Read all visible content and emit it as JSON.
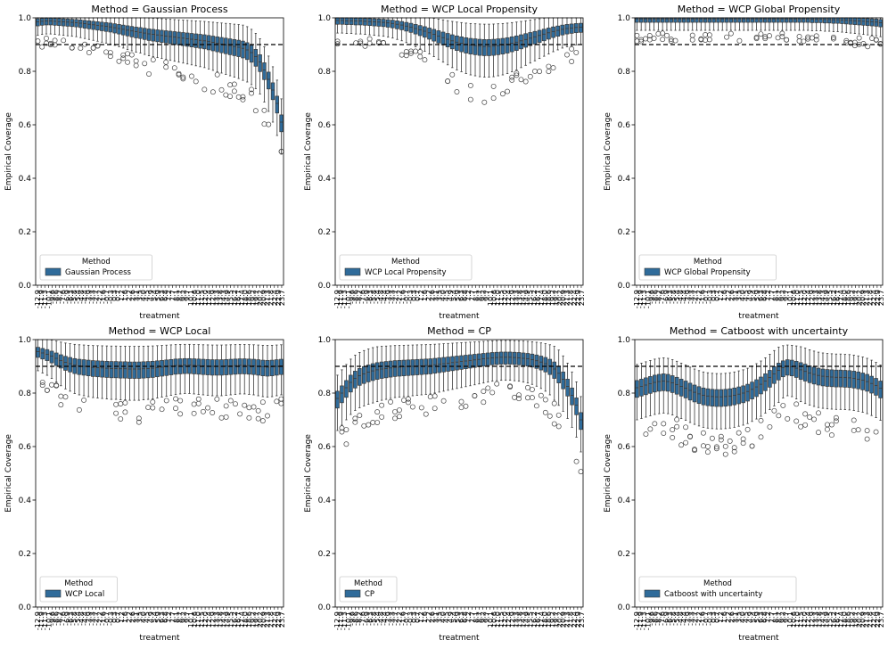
{
  "figure": {
    "ylabel": "Empirical Coverage",
    "xlabel": "treatment",
    "legend_title": "Method",
    "box_color": "#2f6b9a",
    "reference_line": 0.9
  },
  "chart_data": [
    {
      "type": "box",
      "title": "Method = Gaussian Process",
      "legend_label": "Gaussian Process",
      "ylim": [
        0,
        1
      ],
      "yticks": [
        "0.0",
        "0.2",
        "0.4",
        "0.6",
        "0.8",
        "1.0"
      ],
      "medians": [
        0.985,
        0.987,
        0.988,
        0.988,
        0.987,
        0.986,
        0.985,
        0.984,
        0.983,
        0.982,
        0.98,
        0.978,
        0.976,
        0.974,
        0.972,
        0.97,
        0.968,
        0.966,
        0.963,
        0.96,
        0.957,
        0.954,
        0.951,
        0.948,
        0.946,
        0.943,
        0.94,
        0.938,
        0.936,
        0.934,
        0.932,
        0.93,
        0.928,
        0.926,
        0.924,
        0.922,
        0.92,
        0.918,
        0.916,
        0.914,
        0.911,
        0.908,
        0.905,
        0.902,
        0.899,
        0.896,
        0.893,
        0.89,
        0.886,
        0.88,
        0.87,
        0.855,
        0.835,
        0.805,
        0.77,
        0.73,
        0.68,
        0.61
      ]
    },
    {
      "type": "box",
      "title": "Method = WCP Local Propensity",
      "legend_label": "WCP Local Propensity",
      "ylim": [
        0,
        1
      ],
      "yticks": [
        "0.0",
        "0.2",
        "0.4",
        "0.6",
        "0.8",
        "1.0"
      ],
      "medians": [
        0.99,
        0.99,
        0.989,
        0.989,
        0.988,
        0.988,
        0.987,
        0.986,
        0.985,
        0.984,
        0.983,
        0.981,
        0.979,
        0.976,
        0.973,
        0.969,
        0.965,
        0.96,
        0.955,
        0.95,
        0.944,
        0.938,
        0.932,
        0.926,
        0.92,
        0.914,
        0.909,
        0.905,
        0.901,
        0.898,
        0.896,
        0.894,
        0.893,
        0.893,
        0.894,
        0.896,
        0.898,
        0.901,
        0.905,
        0.909,
        0.914,
        0.919,
        0.924,
        0.929,
        0.934,
        0.939,
        0.944,
        0.949,
        0.953,
        0.957,
        0.96,
        0.962,
        0.964,
        0.965
      ]
    },
    {
      "type": "box",
      "title": "Method = WCP Global Propensity",
      "legend_label": "WCP Global Propensity",
      "ylim": [
        0,
        1
      ],
      "yticks": [
        "0.0",
        "0.2",
        "0.4",
        "0.6",
        "0.8",
        "1.0"
      ],
      "medians": [
        0.996,
        0.996,
        0.996,
        0.996,
        0.996,
        0.996,
        0.996,
        0.996,
        0.996,
        0.996,
        0.996,
        0.996,
        0.996,
        0.996,
        0.996,
        0.996,
        0.996,
        0.996,
        0.996,
        0.996,
        0.996,
        0.996,
        0.996,
        0.996,
        0.996,
        0.996,
        0.996,
        0.996,
        0.996,
        0.996,
        0.996,
        0.996,
        0.996,
        0.996,
        0.996,
        0.996,
        0.996,
        0.996,
        0.996,
        0.996,
        0.996,
        0.995,
        0.995,
        0.995,
        0.994,
        0.994,
        0.993,
        0.993,
        0.992,
        0.991,
        0.99,
        0.989,
        0.988,
        0.987,
        0.986,
        0.985,
        0.984,
        0.982
      ]
    },
    {
      "type": "box",
      "title": "Method = WCP Local",
      "legend_label": "WCP Local",
      "ylim": [
        0,
        1
      ],
      "yticks": [
        "0.0",
        "0.2",
        "0.4",
        "0.6",
        "0.8",
        "1.0"
      ],
      "medians": [
        0.955,
        0.95,
        0.945,
        0.938,
        0.93,
        0.922,
        0.915,
        0.91,
        0.905,
        0.902,
        0.9,
        0.898,
        0.896,
        0.895,
        0.894,
        0.893,
        0.892,
        0.892,
        0.891,
        0.891,
        0.89,
        0.89,
        0.89,
        0.891,
        0.892,
        0.893,
        0.895,
        0.897,
        0.899,
        0.901,
        0.903,
        0.904,
        0.905,
        0.905,
        0.904,
        0.903,
        0.902,
        0.901,
        0.9,
        0.9,
        0.9,
        0.901,
        0.902,
        0.903,
        0.904,
        0.904,
        0.903,
        0.902,
        0.9,
        0.898,
        0.897,
        0.898,
        0.9,
        0.902
      ]
    },
    {
      "type": "box",
      "title": "Method = CP",
      "legend_label": "CP",
      "ylim": [
        0,
        1
      ],
      "yticks": [
        "0.0",
        "0.2",
        "0.4",
        "0.6",
        "0.8",
        "1.0"
      ],
      "medians": [
        0.78,
        0.8,
        0.82,
        0.84,
        0.855,
        0.865,
        0.872,
        0.878,
        0.883,
        0.887,
        0.89,
        0.892,
        0.894,
        0.896,
        0.897,
        0.898,
        0.899,
        0.9,
        0.901,
        0.902,
        0.903,
        0.904,
        0.906,
        0.908,
        0.91,
        0.912,
        0.914,
        0.916,
        0.918,
        0.92,
        0.922,
        0.924,
        0.926,
        0.928,
        0.93,
        0.932,
        0.933,
        0.934,
        0.934,
        0.934,
        0.933,
        0.932,
        0.93,
        0.928,
        0.925,
        0.921,
        0.916,
        0.91,
        0.902,
        0.89,
        0.874,
        0.852,
        0.825,
        0.792,
        0.755,
        0.7
      ]
    },
    {
      "type": "box",
      "title": "Method = Catboost with uncertainty",
      "legend_label": "Catboost with uncertainty",
      "ylim": [
        0,
        1
      ],
      "yticks": [
        "0.0",
        "0.2",
        "0.4",
        "0.6",
        "0.8",
        "1.0"
      ],
      "medians": [
        0.82,
        0.825,
        0.83,
        0.835,
        0.84,
        0.843,
        0.845,
        0.843,
        0.838,
        0.832,
        0.825,
        0.818,
        0.81,
        0.803,
        0.797,
        0.792,
        0.789,
        0.787,
        0.786,
        0.786,
        0.787,
        0.789,
        0.792,
        0.796,
        0.8,
        0.806,
        0.814,
        0.823,
        0.833,
        0.845,
        0.858,
        0.872,
        0.885,
        0.895,
        0.9,
        0.898,
        0.893,
        0.887,
        0.881,
        0.875,
        0.87,
        0.866,
        0.863,
        0.861,
        0.86,
        0.859,
        0.859,
        0.858,
        0.857,
        0.855,
        0.852,
        0.848,
        0.843,
        0.836,
        0.828,
        0.818
      ]
    }
  ],
  "xticks": [
    "-12.9",
    "-11.9",
    "-11.3",
    "-10.1",
    "-9.6",
    "-8.6",
    "-8.2",
    "-7.6",
    "-6.9",
    "-6.3",
    "-5.8",
    "-5.4",
    "-4.8",
    "-4.4",
    "-3.9",
    "-3.3",
    "-2.7",
    "-2.2",
    "-1.6",
    "-0.7",
    "-0.3",
    "0.3",
    "0.7",
    "1.2",
    "1.6",
    "2.2",
    "2.6",
    "3.1",
    "3.5",
    "4.0",
    "4.5",
    "4.9",
    "5.4",
    "5.9",
    "6.3",
    "6.8",
    "7.2",
    "7.7",
    "8.1",
    "8.7",
    "9.2",
    "9.7",
    "10.1",
    "10.6",
    "11.0",
    "11.5",
    "12.0",
    "12.4",
    "12.9",
    "13.3",
    "13.8",
    "14.3",
    "14.9",
    "15.5",
    "16.2",
    "16.7",
    "17.4",
    "18.0",
    "18.6",
    "19.2",
    "19.7",
    "20.2",
    "20.9",
    "21.3",
    "21.8",
    "22.4",
    "22.9",
    "23.7"
  ]
}
